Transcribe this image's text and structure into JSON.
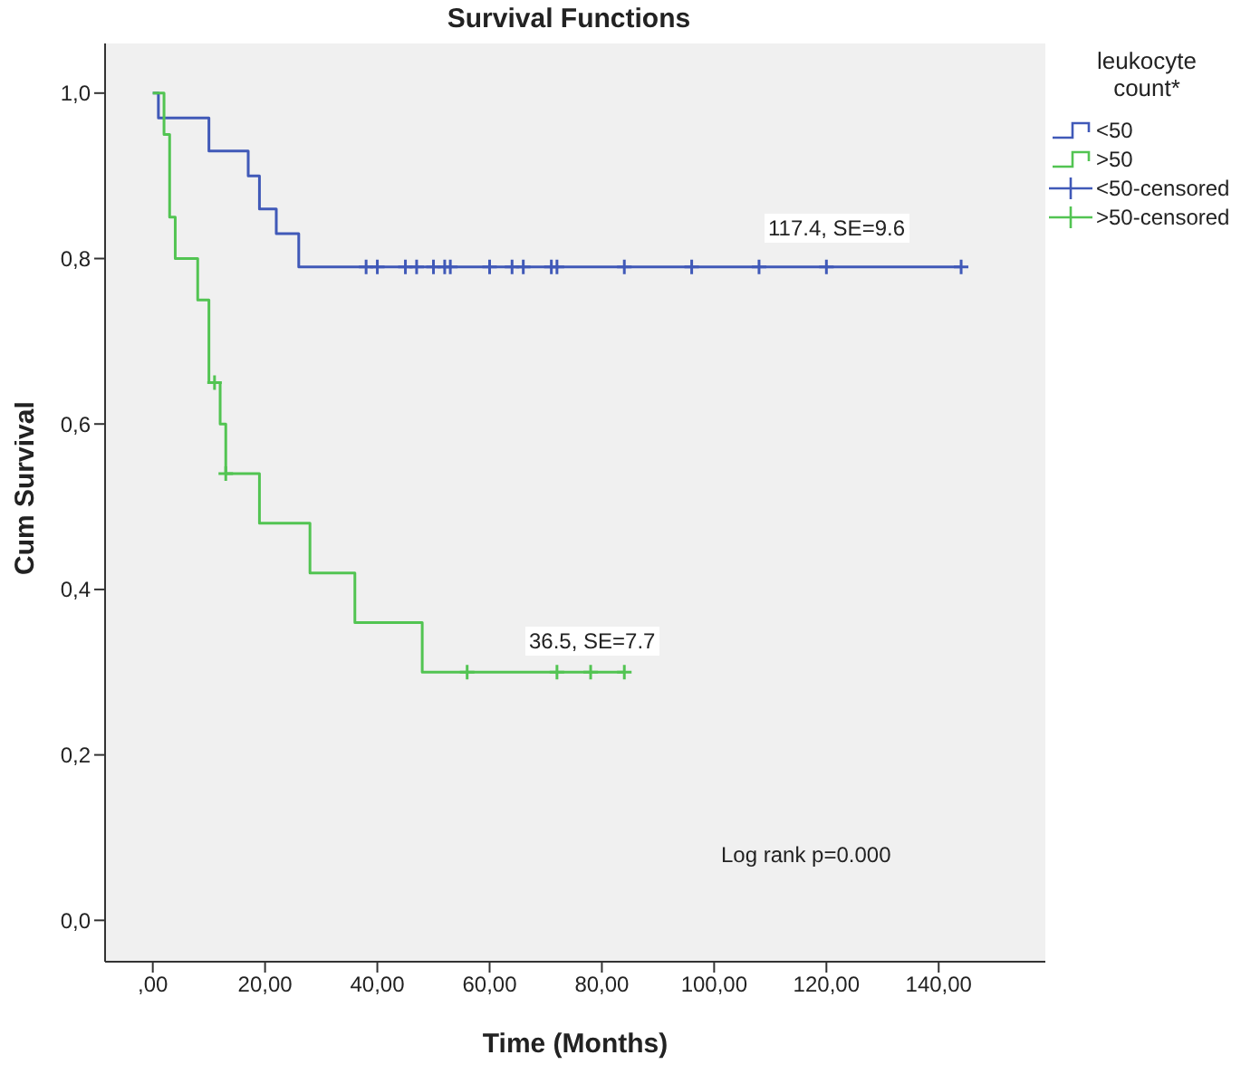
{
  "chart_data": {
    "type": "step",
    "title": "Survival Functions",
    "xlabel": "Time (Months)",
    "ylabel": "Cum Survival",
    "legend_title": "leukocyte count*",
    "legend": "right",
    "grid": false,
    "xlim": [
      -8.5,
      159
    ],
    "ylim": [
      -0.05,
      1.06
    ],
    "xticks": [
      {
        "value": 0,
        "label": ",00"
      },
      {
        "value": 20,
        "label": "20,00"
      },
      {
        "value": 40,
        "label": "40,00"
      },
      {
        "value": 60,
        "label": "60,00"
      },
      {
        "value": 80,
        "label": "80,00"
      },
      {
        "value": 100,
        "label": "100,00"
      },
      {
        "value": 120,
        "label": "120,00"
      },
      {
        "value": 140,
        "label": "140,00"
      }
    ],
    "yticks": [
      {
        "value": 0,
        "label": "0,0"
      },
      {
        "value": 0.2,
        "label": "0,2"
      },
      {
        "value": 0.4,
        "label": "0,4"
      },
      {
        "value": 0.6,
        "label": "0,6"
      },
      {
        "value": 0.8,
        "label": "0,8"
      },
      {
        "value": 1,
        "label": "1,0"
      }
    ],
    "series": [
      {
        "name": "<50",
        "marker": "none",
        "color": "#4059b8",
        "x": [
          0,
          1,
          10,
          17,
          19,
          22,
          26,
          144
        ],
        "values": [
          1,
          0.97,
          0.93,
          0.9,
          0.86,
          0.83,
          0.79,
          0.79
        ]
      },
      {
        "name": ">50",
        "marker": "none",
        "color": "#52c452",
        "x": [
          0,
          2,
          3,
          4,
          8,
          10,
          12,
          13,
          19,
          28,
          36,
          48,
          84
        ],
        "values": [
          1,
          0.95,
          0.85,
          0.8,
          0.75,
          0.65,
          0.6,
          0.54,
          0.48,
          0.42,
          0.36,
          0.3,
          0.3
        ]
      },
      {
        "name": "<50-censored",
        "type": "scatter",
        "marker": "cross",
        "color": "#4059b8",
        "x": [
          38,
          40,
          45,
          47,
          50,
          52,
          53,
          60,
          64,
          66,
          71,
          72,
          84,
          96,
          108,
          120,
          144
        ],
        "values": [
          0.79,
          0.79,
          0.79,
          0.79,
          0.79,
          0.79,
          0.79,
          0.79,
          0.79,
          0.79,
          0.79,
          0.79,
          0.79,
          0.79,
          0.79,
          0.79,
          0.79
        ]
      },
      {
        "name": ">50-censored",
        "type": "scatter",
        "marker": "cross",
        "color": "#52c452",
        "x": [
          11,
          13,
          56,
          72,
          78,
          84
        ],
        "values": [
          0.65,
          0.54,
          0.3,
          0.3,
          0.3,
          0.3
        ]
      }
    ],
    "annotations": [
      "117.4, SE=9.6",
      "36.5, SE=7.7",
      "Log rank p=0.000"
    ]
  }
}
